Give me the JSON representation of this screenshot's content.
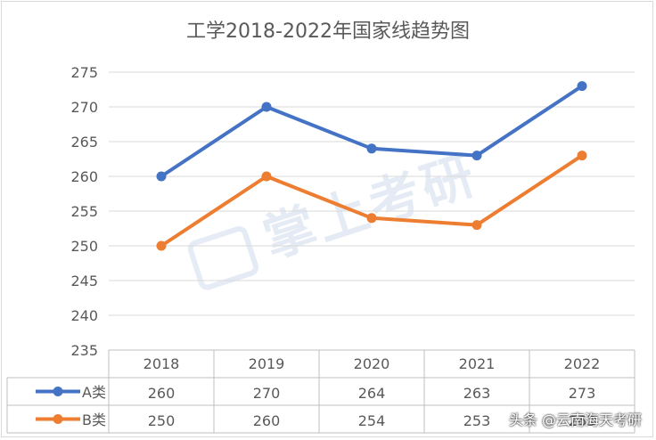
{
  "chart_data": {
    "type": "line",
    "title": "工学2018-2022年国家线趋势图",
    "categories": [
      "2018",
      "2019",
      "2020",
      "2021",
      "2022"
    ],
    "ylim": [
      235,
      275
    ],
    "yticks": [
      235,
      240,
      245,
      250,
      255,
      260,
      265,
      270,
      275
    ],
    "grid": true,
    "legend": "data-table",
    "series": [
      {
        "name": "A类",
        "values": [
          260,
          270,
          264,
          263,
          273
        ],
        "color": "#4472c4"
      },
      {
        "name": "B类",
        "values": [
          250,
          260,
          254,
          253,
          263
        ],
        "color": "#ed7d31"
      }
    ]
  },
  "watermark": {
    "text": "掌上考研",
    "icon": "book-logo-icon"
  },
  "credit": "头条 @云南海天考研"
}
